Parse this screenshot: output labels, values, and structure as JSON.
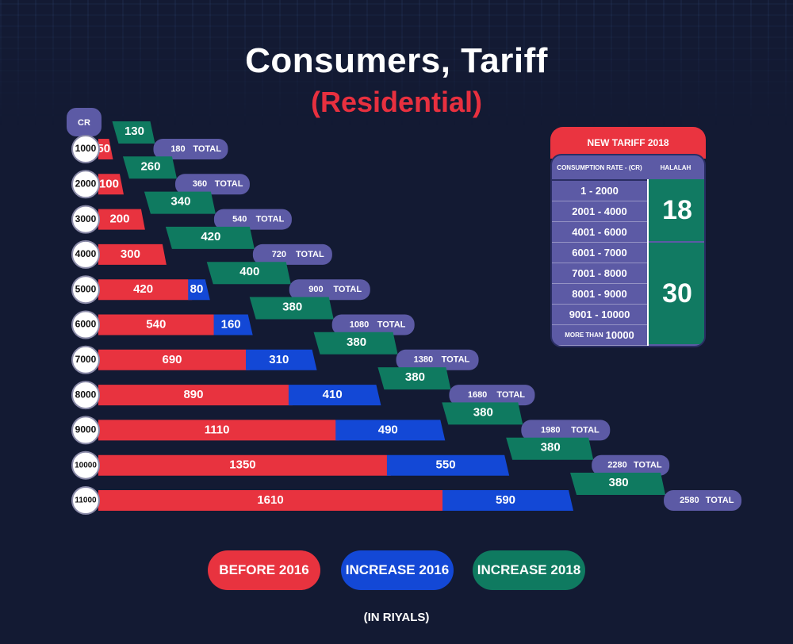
{
  "title": "Consumers, Tariff",
  "subtitle": "(Residential)",
  "units_note": "(IN RIYALS)",
  "colors": {
    "before_2016": "#e8333f",
    "increase_2016": "#1348d6",
    "increase_2018": "#0f7a60",
    "total_pill": "#5c5aa5",
    "background": "#131a33"
  },
  "legend": [
    {
      "label": "BEFORE 2016",
      "color": "#e8333f"
    },
    {
      "label": "INCREASE 2016",
      "color": "#1348d6"
    },
    {
      "label": "INCREASE 2018",
      "color": "#0f7a60"
    }
  ],
  "chart_data": {
    "type": "bar",
    "stacked": true,
    "orientation": "horizontal",
    "title": "Consumers, Tariff",
    "subtitle": "(Residential)",
    "category_header": "CR",
    "categories": [
      "1000",
      "2000",
      "3000",
      "4000",
      "5000",
      "6000",
      "7000",
      "8000",
      "9000",
      "10000",
      "11000"
    ],
    "series": [
      {
        "name": "BEFORE 2016",
        "values": [
          50,
          100,
          200,
          300,
          420,
          540,
          690,
          890,
          1110,
          1350,
          1610
        ]
      },
      {
        "name": "INCREASE 2016",
        "values": [
          0,
          0,
          0,
          0,
          80,
          160,
          310,
          410,
          490,
          550,
          590
        ]
      },
      {
        "name": "INCREASE 2018",
        "values": [
          130,
          260,
          340,
          420,
          400,
          380,
          380,
          380,
          380,
          380,
          380
        ]
      }
    ],
    "totals": [
      180,
      360,
      540,
      720,
      900,
      1080,
      1380,
      1680,
      1980,
      2280,
      2580
    ],
    "total_label": "TOTAL",
    "unit": "(IN RIYALS)"
  },
  "tariff_table": {
    "title": "NEW TARIFF 2018",
    "col_rate": "CONSUMPTION RATE - (CR)",
    "col_halalah": "HALALAH",
    "rows": [
      {
        "range": "1 - 2000"
      },
      {
        "range": "2001 - 4000"
      },
      {
        "range": "4001 - 6000"
      },
      {
        "range": "6001 - 7000"
      },
      {
        "range": "7001 - 8000"
      },
      {
        "range": "8001 - 9000"
      },
      {
        "range": "9001 - 10000"
      },
      {
        "prefix": "MORE THAN",
        "range": "10000"
      }
    ],
    "halalah": [
      {
        "value": "18",
        "rows": 3
      },
      {
        "value": "30",
        "rows": 5
      }
    ]
  }
}
